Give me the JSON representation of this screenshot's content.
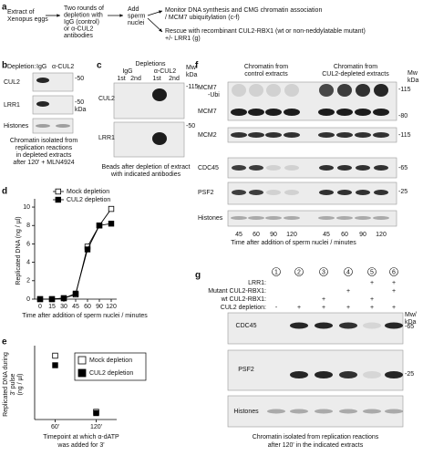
{
  "panel_a": {
    "label": "a",
    "steps": [
      [
        "Extract of",
        "Xenopus eggs"
      ],
      [
        "Two rounds of",
        "depletion with",
        "IgG (control)",
        "or α-CUL2",
        "antibodies"
      ],
      [
        "Add",
        "sperm",
        "nuclei"
      ]
    ],
    "outcomes": [
      [
        "Monitor DNA synthesis and CMG chromatin association",
        "/ MCM7 ubiquitylation (c-f)"
      ],
      [
        "Rescue with recombinant CUL2-RBX1 (wt or non-neddylatable mutant)",
        "+/- LRR1 (g)"
      ]
    ]
  },
  "panel_b": {
    "label": "b",
    "header": "Depletion:",
    "columns": [
      "IgG",
      "α-CUL2"
    ],
    "rows": [
      "CUL2",
      "LRR1",
      "Histones"
    ],
    "markers": [
      "-50",
      "-50",
      "kDa"
    ],
    "caption": [
      "Chromatin isolated from",
      "replication reactions",
      "in depleted extracts",
      "after 120' + MLN4924"
    ]
  },
  "panel_c": {
    "label": "c",
    "header": "Depletions",
    "groups": [
      "IgG",
      "α-CUL2"
    ],
    "lanes": [
      "1st",
      "2nd",
      "1st",
      "2nd"
    ],
    "mw": [
      "Mw",
      "kDa"
    ],
    "rows": [
      "CUL2",
      "LRR1"
    ],
    "markers": [
      "-115",
      "-50"
    ],
    "caption": [
      "Beads after depletion of extract",
      "with indicated antibodies"
    ]
  },
  "chart_data": [
    {
      "type": "line",
      "panel_label": "d",
      "x_label": "Time after addition of sperm nuclei / minutes",
      "y_label": "Replicated DNA (ng / µl)",
      "categories": [
        "0",
        "15",
        "30",
        "45",
        "60",
        "90",
        "120"
      ],
      "ylim": [
        0,
        10.5
      ],
      "yticks": [
        0,
        2,
        4,
        6,
        8,
        10
      ],
      "legend": "top-left",
      "series": [
        {
          "name": "Mock depletion",
          "marker": "open-square",
          "color": "#000000",
          "values": [
            0,
            0,
            0.1,
            0.5,
            5.7,
            8,
            9.8
          ]
        },
        {
          "name": "CUL2 depletion",
          "marker": "filled-square",
          "color": "#000000",
          "values": [
            0,
            0,
            0.1,
            0.6,
            5.4,
            8,
            8.2
          ]
        }
      ]
    },
    {
      "type": "dot",
      "panel_label": "e",
      "x_label": [
        "Timepoint at which α-dATP",
        "was added for 3'"
      ],
      "y_label": [
        "Replicated DNA during",
        "3' pulse",
        "(ng / µl)"
      ],
      "categories": [
        "60'",
        "120'"
      ],
      "ylim": [
        0,
        1.1
      ],
      "legend": "top-right",
      "series": [
        {
          "name": "Mock depletion",
          "marker": "open-square",
          "color": "#000000",
          "values": [
            1.0,
            0.12
          ]
        },
        {
          "name": "CUL2 depletion",
          "marker": "filled-square",
          "color": "#000000",
          "values": [
            0.85,
            0.1
          ]
        }
      ]
    }
  ],
  "panel_f": {
    "label": "f",
    "groups": [
      [
        "Chromatin from",
        "control extracts"
      ],
      [
        "Chromatin from",
        "CUL2-depleted extracts"
      ]
    ],
    "mw": [
      "Mw",
      "kDa"
    ],
    "rows": [
      "MCM7",
      "-Ubi",
      "MCM7",
      "MCM2",
      "CDC45",
      "PSF2",
      "Histones"
    ],
    "markers": [
      "-115",
      "-80",
      "-115",
      "-65",
      "-25"
    ],
    "lanes": [
      "45",
      "60",
      "90",
      "120",
      "45",
      "60",
      "90",
      "120"
    ],
    "x_label": "Time after addition of sperm nuclei / minutes"
  },
  "panel_g": {
    "label": "g",
    "conditions": [
      "1",
      "2",
      "3",
      "4",
      "5",
      "6"
    ],
    "rows": [
      {
        "name": "LRR1:",
        "marks": [
          null,
          null,
          null,
          null,
          "+",
          "+"
        ]
      },
      {
        "name": "Mutant CUL2-RBX1:",
        "marks": [
          null,
          null,
          null,
          "+",
          null,
          "+"
        ]
      },
      {
        "name": "wt CUL2-RBX1:",
        "marks": [
          null,
          null,
          "+",
          null,
          "+",
          null
        ]
      },
      {
        "name": "CUL2 depletion:",
        "marks": [
          "-",
          "+",
          "+",
          "+",
          "+",
          "+"
        ]
      }
    ],
    "mw": [
      "Mw/",
      "kDa"
    ],
    "blots": [
      "CDC45",
      "PSF2",
      "Histones"
    ],
    "markers": [
      "-65",
      "-25"
    ],
    "caption": [
      "Chromatin isolated from replication reactions",
      "after 120' in the indicated extracts"
    ]
  }
}
